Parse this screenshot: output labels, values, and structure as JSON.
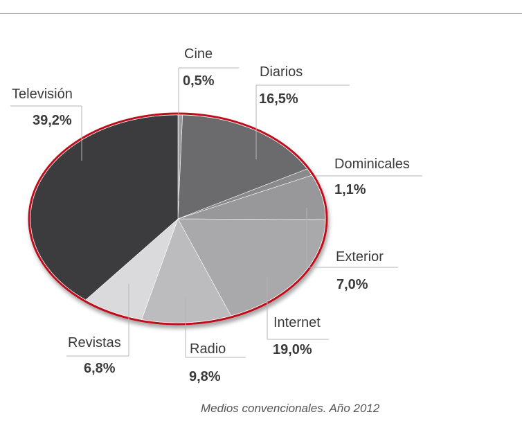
{
  "chart_data": {
    "type": "pie",
    "categories": [
      "Cine",
      "Diarios",
      "Dominicales",
      "Exterior",
      "Internet",
      "Radio",
      "Revistas",
      "Televisión"
    ],
    "values": [
      0.5,
      16.5,
      1.1,
      7.0,
      19.0,
      9.8,
      6.8,
      39.2
    ],
    "value_labels": [
      "0,5%",
      "16,5%",
      "1,1%",
      "7,0%",
      "19,0%",
      "9,8%",
      "6,8%",
      "39,2%"
    ],
    "colors": [
      "#9a9a9a",
      "#6b6b6e",
      "#8a8a8c",
      "#98989a",
      "#a9a9ab",
      "#bcbcbe",
      "#dadadc",
      "#3c3c3e"
    ],
    "legend": "callout labels around the pie",
    "caption": "Medios convencionales. Año 2012",
    "title": ""
  }
}
